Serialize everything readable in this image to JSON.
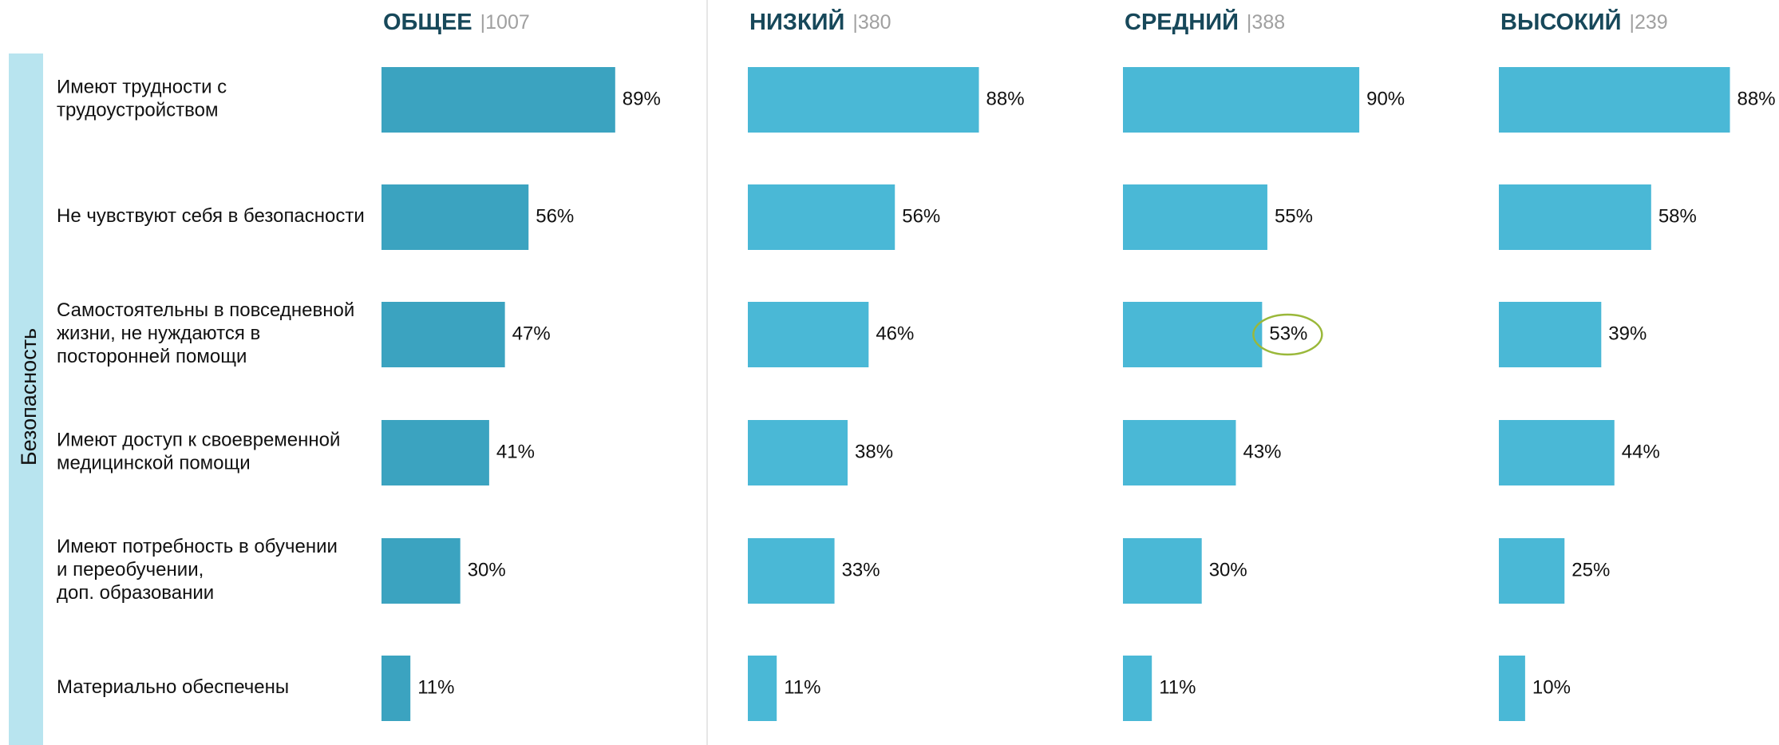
{
  "section_label": "Безопасность",
  "chart_data": [
    {
      "type": "bar",
      "title": "ОБЩЕЕ",
      "sample": "|1007",
      "color": "#3ba3c0",
      "categories": [
        [
          "Имеют трудности с",
          "трудоустройством"
        ],
        [
          "Не чувствуют себя в безопасности"
        ],
        [
          "Самостоятельны в повседневной",
          "жизни, не нуждаются в",
          "посторонней помощи"
        ],
        [
          "Имеют доступ к своевременной",
          "медицинской помощи"
        ],
        [
          "Имеют потребность в обучении",
          "и переобучении,",
          "доп. образовании"
        ],
        [
          "Материально обеспечены"
        ]
      ],
      "values": [
        89,
        56,
        47,
        41,
        30,
        11
      ],
      "value_labels": [
        "89%",
        "56%",
        "47%",
        "41%",
        "30%",
        "11%"
      ]
    },
    {
      "type": "bar",
      "title": "НИЗКИЙ",
      "sample": "|380",
      "color": "#4ab8d6",
      "values": [
        88,
        56,
        46,
        38,
        33,
        11
      ],
      "value_labels": [
        "88%",
        "56%",
        "46%",
        "38%",
        "33%",
        "11%"
      ]
    },
    {
      "type": "bar",
      "title": "СРЕДНИЙ",
      "sample": "|388",
      "color": "#4ab8d6",
      "values": [
        90,
        55,
        53,
        43,
        30,
        11
      ],
      "value_labels": [
        "90%",
        "55%",
        "53%",
        "43%",
        "30%",
        "11%"
      ],
      "highlight": 2
    },
    {
      "type": "bar",
      "title": "ВЫСОКИЙ",
      "sample": "|239",
      "color": "#4ab8d6",
      "values": [
        88,
        58,
        39,
        44,
        25,
        10
      ],
      "value_labels": [
        "88%",
        "58%",
        "39%",
        "44%",
        "25%",
        "10%"
      ]
    }
  ]
}
